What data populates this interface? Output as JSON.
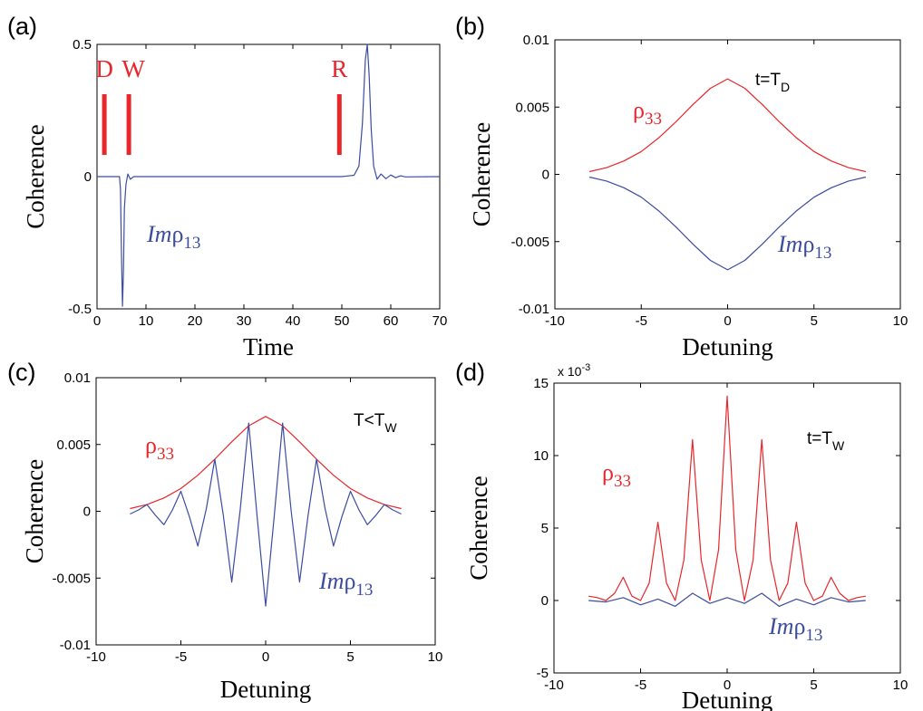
{
  "chart_data": [
    {
      "panel_label": "(a)",
      "type": "line",
      "xlabel": "Time",
      "ylabel": "Coherence",
      "xlim": [
        0,
        70
      ],
      "ylim": [
        -0.5,
        0.5
      ],
      "xticks": [
        "0",
        "10",
        "20",
        "30",
        "40",
        "50",
        "60",
        "70"
      ],
      "yticks": [
        "0.5",
        "0",
        "-0.5"
      ],
      "markers": [
        {
          "label": "D",
          "x": 1.5
        },
        {
          "label": "W",
          "x": 6.5
        },
        {
          "label": "R",
          "x": 49.5
        }
      ],
      "series": [
        {
          "name": "Imρ13",
          "name_main": "Imρ",
          "name_sub": "13",
          "color": "#3c4ca0",
          "x": [
            0,
            4.6,
            4.8,
            5.0,
            5.2,
            5.4,
            5.6,
            5.9,
            6.3,
            6.8,
            7.5,
            10,
            20,
            30,
            40,
            50,
            52.5,
            53.5,
            54.2,
            54.8,
            55.2,
            55.6,
            56.0,
            56.5,
            57.2,
            58,
            59,
            60,
            61,
            62,
            63,
            70
          ],
          "y": [
            0,
            0,
            -0.05,
            -0.3,
            -0.49,
            -0.35,
            -0.12,
            -0.03,
            0.01,
            -0.01,
            0,
            0,
            0,
            0,
            0,
            0,
            0.005,
            0.04,
            0.2,
            0.44,
            0.5,
            0.38,
            0.18,
            0.04,
            -0.01,
            0.01,
            -0.008,
            0.006,
            -0.004,
            0.003,
            -0.001,
            0
          ]
        }
      ]
    },
    {
      "panel_label": "(b)",
      "type": "line",
      "xlabel": "Detuning",
      "ylabel": "Coherence",
      "xlim": [
        -10,
        10
      ],
      "ylim": [
        -0.01,
        0.01
      ],
      "xticks": [
        "-10",
        "-5",
        "0",
        "5",
        "10"
      ],
      "yticks": [
        "0.01",
        "0.005",
        "0",
        "-0.005",
        "-0.01"
      ],
      "annotation": {
        "main": "t=T",
        "sub": "D"
      },
      "series": [
        {
          "name": "ρ33",
          "name_main": "ρ",
          "name_sub": "33",
          "color": "#e8262b",
          "x": [
            -8,
            -7,
            -6,
            -5,
            -4,
            -3,
            -2,
            -1,
            0,
            1,
            2,
            3,
            4,
            5,
            6,
            7,
            8
          ],
          "y": [
            0.0002,
            0.0005,
            0.001,
            0.0017,
            0.0027,
            0.0039,
            0.0052,
            0.0064,
            0.0071,
            0.0064,
            0.0052,
            0.0039,
            0.0027,
            0.0017,
            0.001,
            0.0005,
            0.0002
          ]
        },
        {
          "name": "Imρ13",
          "name_main": "Imρ",
          "name_sub": "13",
          "color": "#3c4ca0",
          "x": [
            -8,
            -7,
            -6,
            -5,
            -4,
            -3,
            -2,
            -1,
            0,
            1,
            2,
            3,
            4,
            5,
            6,
            7,
            8
          ],
          "y": [
            -0.0002,
            -0.0005,
            -0.001,
            -0.0017,
            -0.0027,
            -0.0039,
            -0.0052,
            -0.0064,
            -0.0071,
            -0.0064,
            -0.0052,
            -0.0039,
            -0.0027,
            -0.0017,
            -0.001,
            -0.0005,
            -0.0002
          ]
        }
      ]
    },
    {
      "panel_label": "(c)",
      "type": "line",
      "xlabel": "Detuning",
      "ylabel": "Coherence",
      "xlim": [
        -10,
        10
      ],
      "ylim": [
        -0.01,
        0.01
      ],
      "xticks": [
        "-10",
        "-5",
        "0",
        "5",
        "10"
      ],
      "yticks": [
        "0.01",
        "0.005",
        "0",
        "-0.005",
        "-0.01"
      ],
      "annotation": {
        "main": "T<T",
        "sub": "W"
      },
      "series": [
        {
          "name": "ρ33",
          "name_main": "ρ",
          "name_sub": "33",
          "color": "#e8262b",
          "x": [
            -8,
            -7,
            -6,
            -5,
            -4,
            -3,
            -2,
            -1,
            0,
            1,
            2,
            3,
            4,
            5,
            6,
            7,
            8
          ],
          "y": [
            0.0002,
            0.0005,
            0.001,
            0.0017,
            0.0027,
            0.0039,
            0.0052,
            0.0064,
            0.0071,
            0.0064,
            0.0052,
            0.0039,
            0.0027,
            0.0017,
            0.001,
            0.0005,
            0.0002
          ]
        },
        {
          "name": "Imρ13",
          "name_main": "Imρ",
          "name_sub": "13",
          "color": "#3c4ca0",
          "x": [
            -8,
            -7.5,
            -7,
            -6.5,
            -6,
            -5.5,
            -5,
            -4.5,
            -4,
            -3.5,
            -3,
            -2.5,
            -2,
            -1.5,
            -1,
            -0.5,
            0,
            0.5,
            1,
            1.5,
            2,
            2.5,
            3,
            3.5,
            4,
            4.5,
            5,
            5.5,
            6,
            6.5,
            7,
            7.5,
            8
          ],
          "y": [
            -0.0002,
            0.0001,
            0.0005,
            -0.0003,
            -0.001,
            0.0001,
            0.0015,
            -0.0004,
            -0.0026,
            0.0002,
            0.0039,
            -0.0003,
            -0.0053,
            0.0001,
            0.0066,
            -0.0004,
            -0.0071,
            -0.0004,
            0.0066,
            0.0001,
            -0.0053,
            -0.0003,
            0.0039,
            0.0002,
            -0.0026,
            -0.0004,
            0.0015,
            0.0001,
            -0.001,
            -0.0003,
            0.0005,
            0.0001,
            -0.0002
          ]
        }
      ]
    },
    {
      "panel_label": "(d)",
      "type": "line",
      "xlabel": "Detuning",
      "ylabel": "Coherence",
      "xlim": [
        -10,
        10
      ],
      "ylim": [
        -5,
        15
      ],
      "y_scale_note": "x 10",
      "y_scale_exp": "-3",
      "xticks": [
        "-10",
        "-5",
        "0",
        "5",
        "10"
      ],
      "yticks": [
        "15",
        "10",
        "5",
        "0",
        "-5"
      ],
      "annotation": {
        "main": "t=T",
        "sub": "W"
      },
      "series": [
        {
          "name": "ρ33",
          "name_main": "ρ",
          "name_sub": "33",
          "color": "#e8262b",
          "x": [
            -8,
            -7.5,
            -7,
            -6.5,
            -6,
            -5.5,
            -5,
            -4.5,
            -4,
            -3.5,
            -3,
            -2.5,
            -2,
            -1.5,
            -1,
            -0.5,
            0,
            0.5,
            1,
            1.5,
            2,
            2.5,
            3,
            3.5,
            4,
            4.5,
            5,
            5.5,
            6,
            6.5,
            7,
            7.5,
            8
          ],
          "y": [
            0.3,
            0.2,
            0.0,
            0.5,
            1.6,
            0.3,
            0.0,
            1.2,
            5.4,
            1.2,
            0.0,
            2.8,
            11.1,
            2.8,
            0.0,
            3.5,
            14.1,
            3.5,
            0.0,
            2.8,
            11.1,
            2.8,
            0.0,
            1.2,
            5.4,
            1.2,
            0.0,
            0.3,
            1.6,
            0.5,
            0.0,
            0.2,
            0.3
          ]
        },
        {
          "name": "Imρ13",
          "name_main": "Imρ",
          "name_sub": "13",
          "color": "#3c4ca0",
          "x": [
            -8,
            -7,
            -6,
            -5,
            -4,
            -3,
            -2,
            -1,
            0,
            1,
            2,
            3,
            4,
            5,
            6,
            7,
            8
          ],
          "y": [
            0.0,
            -0.1,
            0.2,
            -0.3,
            0.1,
            -0.4,
            0.5,
            -0.2,
            0.2,
            -0.2,
            0.5,
            -0.4,
            0.1,
            -0.3,
            0.2,
            -0.1,
            0.0
          ]
        }
      ]
    }
  ]
}
